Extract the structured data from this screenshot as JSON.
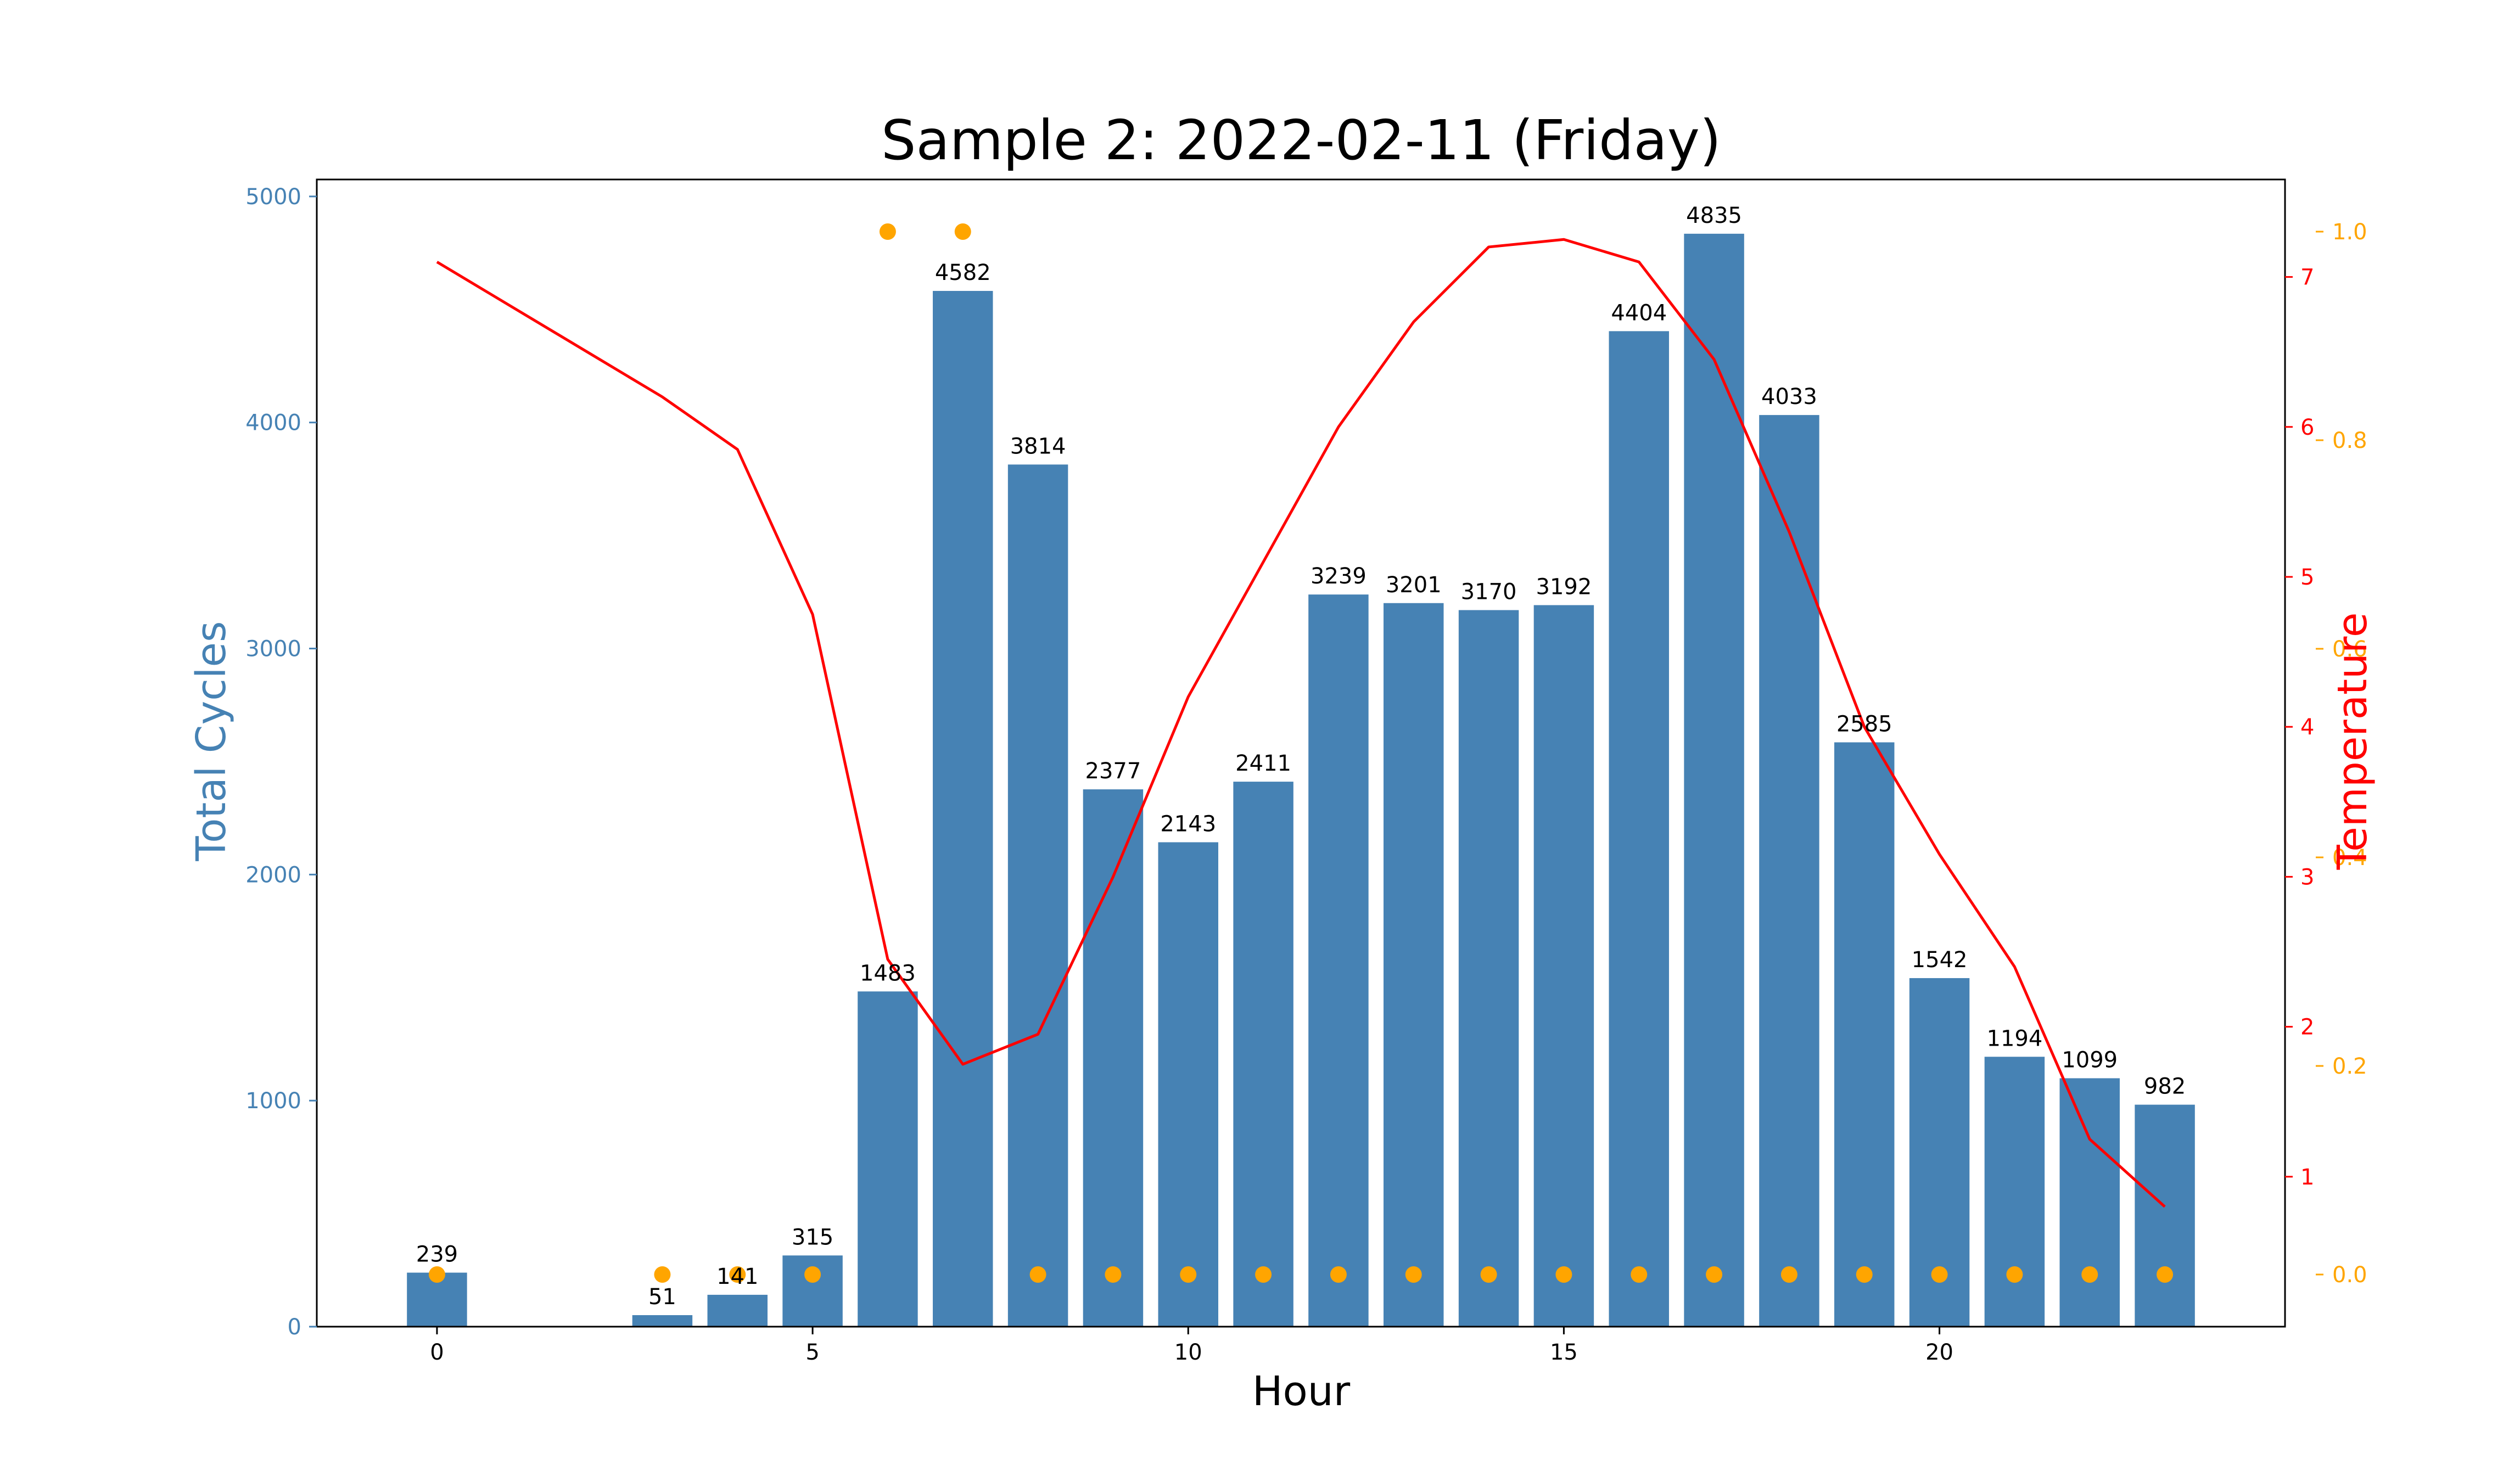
{
  "chart_data": {
    "type": "bar",
    "title": "Sample 2: 2022-02-11 (Friday)",
    "xlabel": "Hour",
    "ylabel": "Total Cycles",
    "y2label": "Temperature",
    "grid": false,
    "xlim": [
      -1.6,
      24.6
    ],
    "ylim": [
      0,
      5075
    ],
    "y2lim": [
      0.0,
      7.65
    ],
    "y3lim": [
      -0.05,
      1.05
    ],
    "xticks": [
      0,
      5,
      10,
      15,
      20
    ],
    "yticks": [
      0,
      1000,
      2000,
      3000,
      4000,
      5000
    ],
    "y2ticks": [
      1,
      2,
      3,
      4,
      5,
      6,
      7
    ],
    "y3ticks": [
      "0.0",
      "0.2",
      "0.4",
      "0.6",
      "0.8",
      "1.0"
    ],
    "colors": {
      "bars": "#4682b4",
      "temperature_line": "#ff0000",
      "dots": "#ffa500",
      "ylabel": "#4682b4",
      "y2label": "#ff0000"
    },
    "bars": {
      "x": [
        0,
        3,
        4,
        5,
        6,
        7,
        8,
        9,
        10,
        11,
        12,
        13,
        14,
        15,
        16,
        17,
        18,
        19,
        20,
        21,
        22,
        23
      ],
      "values": [
        239,
        51,
        141,
        315,
        1483,
        4582,
        3814,
        2377,
        2143,
        2411,
        3239,
        3201,
        3170,
        3192,
        4404,
        4835,
        4033,
        2585,
        1542,
        1194,
        1099,
        982
      ]
    },
    "temperature": {
      "x": [
        0,
        1,
        2,
        3,
        4,
        5,
        6,
        7,
        8,
        9,
        10,
        11,
        12,
        13,
        14,
        15,
        16,
        17,
        18,
        19,
        20,
        21,
        22,
        23
      ],
      "values": [
        7.1,
        6.8,
        6.5,
        6.2,
        5.85,
        4.75,
        2.45,
        1.75,
        1.95,
        3.0,
        4.2,
        5.1,
        6.0,
        6.7,
        7.2,
        7.25,
        7.1,
        6.45,
        5.3,
        4.0,
        3.15,
        2.4,
        1.25,
        0.8
      ]
    },
    "dots": {
      "x": [
        0,
        3,
        4,
        5,
        6,
        7,
        8,
        9,
        10,
        11,
        12,
        13,
        14,
        15,
        16,
        17,
        18,
        19,
        20,
        21,
        22,
        23
      ],
      "values": [
        0,
        0,
        0,
        0,
        1,
        1,
        0,
        0,
        0,
        0,
        0,
        0,
        0,
        0,
        0,
        0,
        0,
        0,
        0,
        0,
        0,
        0
      ]
    }
  }
}
